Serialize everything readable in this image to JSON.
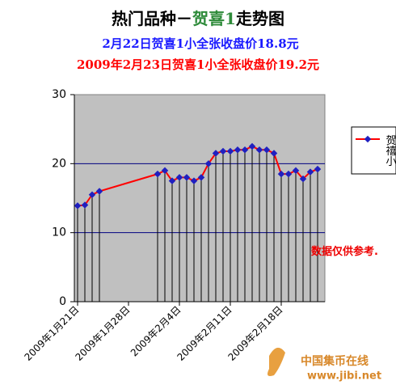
{
  "chart_data": {
    "type": "line",
    "title": [
      "热门品种－",
      "贺喜1",
      "走势图"
    ],
    "subtitles": [
      "2月22日贺喜1小全张收盘价18.8元",
      "2009年2月23日贺喜1小全张收盘价19.2元"
    ],
    "x": [
      "2009-01-21",
      "2009-01-22",
      "2009-01-23",
      "2009-01-24",
      "2009-02-01",
      "2009-02-02",
      "2009-02-03",
      "2009-02-04",
      "2009-02-05",
      "2009-02-06",
      "2009-02-07",
      "2009-02-08",
      "2009-02-09",
      "2009-02-10",
      "2009-02-11",
      "2009-02-12",
      "2009-02-13",
      "2009-02-14",
      "2009-02-15",
      "2009-02-16",
      "2009-02-17",
      "2009-02-18",
      "2009-02-19",
      "2009-02-20",
      "2009-02-21",
      "2009-02-22",
      "2009-02-23"
    ],
    "series": [
      {
        "name": "贺禧小",
        "color": "#ff0000",
        "marker_color": "#2020c0",
        "values": [
          13.9,
          14.0,
          15.5,
          16.0,
          18.5,
          19.0,
          17.5,
          18.0,
          18.0,
          17.5,
          18.0,
          20.0,
          21.5,
          21.8,
          21.8,
          22.0,
          22.0,
          22.5,
          22.0,
          22.0,
          21.5,
          18.5,
          18.5,
          19.0,
          17.8,
          18.8,
          19.2
        ]
      }
    ],
    "xlim": [
      "2009-01-21",
      "2009-02-24"
    ],
    "xticks": [
      {
        "value": "2009-01-21",
        "label": "2009年1月21日"
      },
      {
        "value": "2009-01-28",
        "label": "2009年1月28日"
      },
      {
        "value": "2009-02-04",
        "label": "2009年2月4日"
      },
      {
        "value": "2009-02-11",
        "label": "2009年2月11日"
      },
      {
        "value": "2009-02-18",
        "label": "2009年2月18日"
      }
    ],
    "ylim": [
      0,
      30
    ],
    "yticks": [
      0,
      10,
      20,
      30
    ],
    "grid": true,
    "drop_lines": true,
    "annotation": "数据仅供参考.",
    "watermark": [
      "中国集币在线",
      "www.jibi.net"
    ]
  }
}
